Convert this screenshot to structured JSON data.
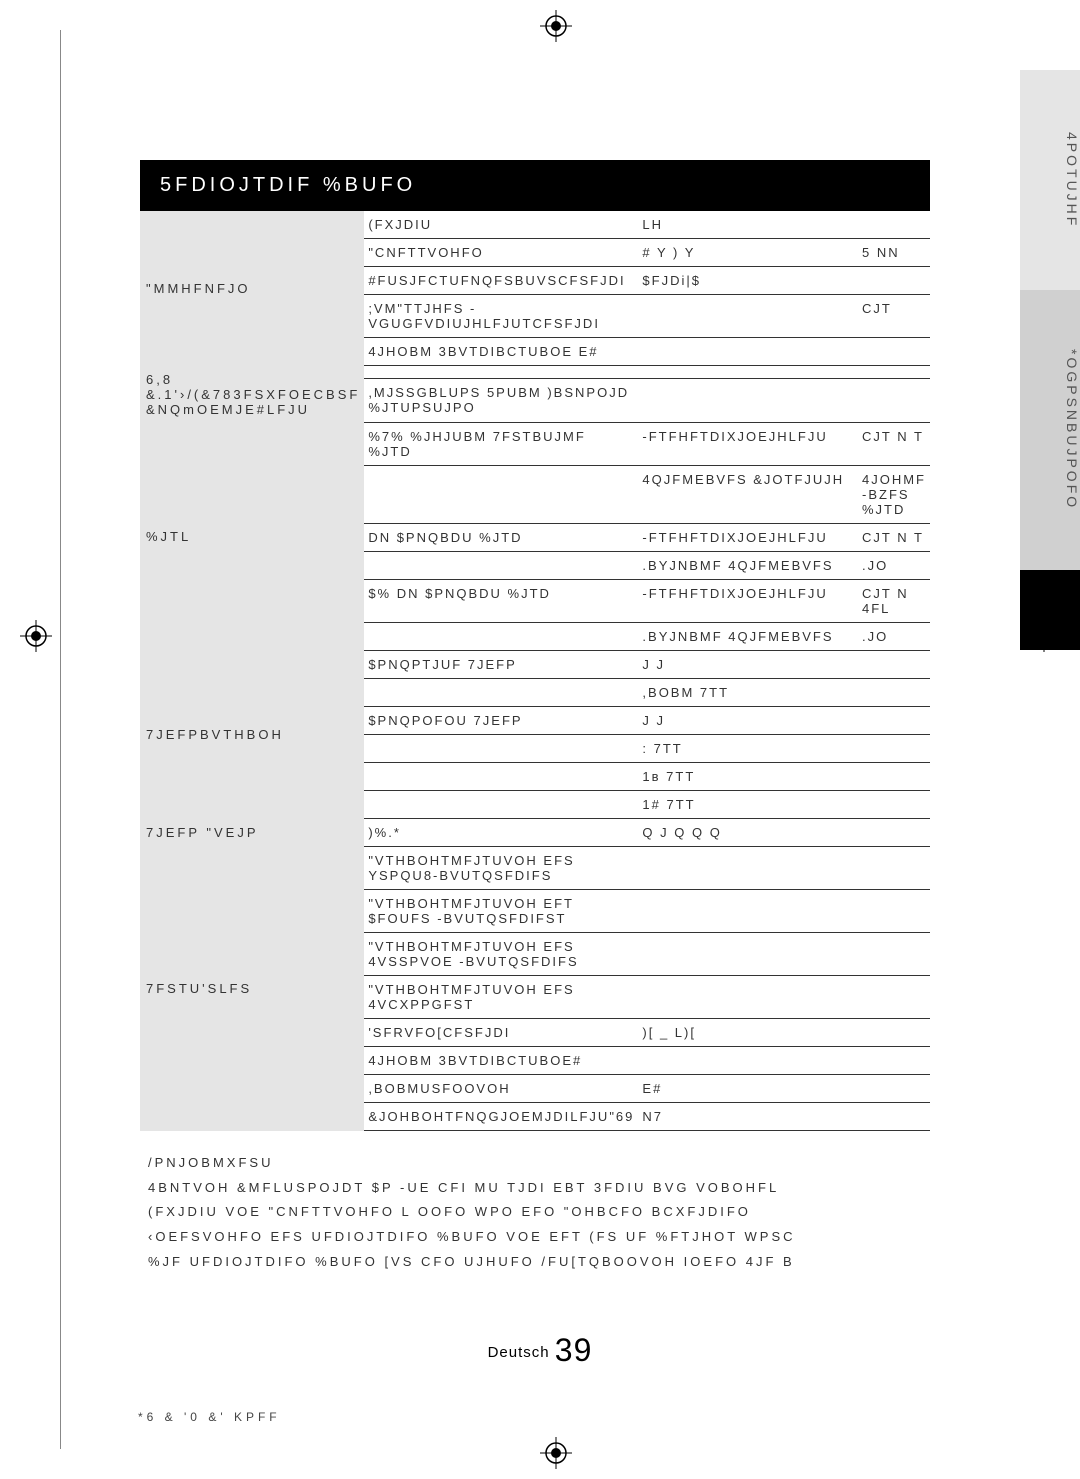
{
  "title": "5FDIOJTDIF %BUFO",
  "sideTabs": [
    "4POTUJHF",
    "*OGPSNBUJPOFO"
  ],
  "table": {
    "groups": [
      {
        "label": "\"MMHFNFJO",
        "rows": [
          {
            "c2": "(FXJDIU",
            "c3": "LH",
            "c4": ""
          },
          {
            "c2": "\"CNFTTVOHFO",
            "c3": "#  Y   )  Y",
            "c4": "5  NN"
          },
          {
            "c2": "#FUSJFCTUFNQFSBUVSCFSFJDI",
            "c3": "$FJDi|$",
            "c4": ""
          },
          {
            "c2": ";VM\"TTJHFS -VGUGFVDIUJHLFJUTCFSFJDI",
            "c3": "",
            "c4": "CJT"
          },
          {
            "c2": "4JHOBM 3BVTDIBCTUBOE E#",
            "c3": "",
            "c4": ""
          }
        ]
      },
      {
        "label": "6,8 &.1'›/(&783FSXFOECBSF &NQmOEMJE#LFJU",
        "rows": [
          {
            "c2": "",
            "c3": "",
            "c4": ""
          },
          {
            "c2": ",MJSSGBLUPS  5PUBM )BSNPOJD %JTUPSUJPO",
            "c3": "",
            "c4": ""
          }
        ]
      },
      {
        "label": "%JTL",
        "rows": [
          {
            "c2": "%7%  %JHJUBM 7FSTBUJMF %JTD",
            "c3": "-FTFHFTDIXJOEJHLFJU",
            "c4": "CJT    N T"
          },
          {
            "c2": "",
            "c3": "4QJFMEBVFS  &JOTFJUJH",
            "c4": "4JOHMF -BZFS %JTD"
          },
          {
            "c2": "DN  $PNQBDU %JTD",
            "c3": "-FTFHFTDIXJOEJHLFJU",
            "c4": "CJT    N T"
          },
          {
            "c2": "",
            "c3": ".BYJNBMF 4QJFMEBVFS",
            "c4": ".JO"
          },
          {
            "c2": "$%  DN  $PNQBDU %JTD",
            "c3": "-FTFHFTDIXJOEJHLFJU",
            "c4": "CJT    N 4FL"
          },
          {
            "c2": "",
            "c3": ".BYJNBMF 4QJFMEBVFS",
            "c4": ".JO"
          }
        ]
      },
      {
        "label": "7JEFPBVTHBOH",
        "rows": [
          {
            "c2": "$PNQPTJUF 7JEFP",
            "c3": "J   J",
            "c4": ""
          },
          {
            "c2": "",
            "c3": ",BOBM    7TT",
            "c4": ""
          },
          {
            "c2": "$PNQPOFOU 7JEFP",
            "c3": "J   J",
            "c4": ""
          },
          {
            "c2": "",
            "c3": ":    7TT",
            "c4": ""
          },
          {
            "c2": "",
            "c3": "1ʙ    7TT",
            "c4": ""
          },
          {
            "c2": "",
            "c3": "1#    7TT",
            "c4": ""
          }
        ]
      },
      {
        "label": "7JEFP \"VEJP",
        "rows": [
          {
            "c2": ")%.*",
            "c3": "Q   J   Q   Q   Q",
            "c4": ""
          }
        ]
      },
      {
        "label": "7FSTU'SLFS",
        "rows": [
          {
            "c2": "\"VTHBOHTMFJTUVOH EFS YSPQU8-BVUTQSFDIFS",
            "c3": "",
            "c4": ""
          },
          {
            "c2": "\"VTHBOHTMFJTUVOH EFT $FOUFS -BVUTQSFDIFST",
            "c3": "",
            "c4": ""
          },
          {
            "c2": "\"VTHBOHTMFJTUVOH EFS 4VSSPVOE -BVUTQSFDIFS",
            "c3": "",
            "c4": ""
          },
          {
            "c2": "\"VTHBOHTMFJTUVOH EFS 4VCXPPGFST",
            "c3": "",
            "c4": ""
          },
          {
            "c2": "'SFRVFO[CFSFJDI",
            "c3": ")[ _   L)[",
            "c4": ""
          },
          {
            "c2": "4JHOBM 3BVTDIBCTUBOE#",
            "c3": "",
            "c4": ""
          },
          {
            "c2": ",BOBMUSFOOVOH",
            "c3": "E#",
            "c4": ""
          },
          {
            "c2": "&JOHBOHTFNQGJOEMJDILFJU\"69",
            "c3": "N7",
            "c4": ""
          }
        ]
      }
    ]
  },
  "notes": [
    "/PNJOBMXFSU",
    "4BNTVOH &MFLUSPOJDT $P   -UE CFI MU TJDI EBT 3FDIU BVG VOBOHFL",
    "(FXJDIU VOE \"CNFTTVOHFO L OOFO WPO EFO \"OHBCFO BCXFJDIFO",
    "‹OEFSVOHFO EFS UFDIOJTDIFO %BUFO VOE EFT (FS UF %FTJHOT WPSC",
    "%JF UFDIOJTDIFO %BUFO [VS CFO UJHUFO /FU[TQBOOVOH IOEFO 4JF B"
  ],
  "pageLang": "Deutsch",
  "pageNum": "39",
  "footerCode": "*6 &   '0 &'    KPFF"
}
